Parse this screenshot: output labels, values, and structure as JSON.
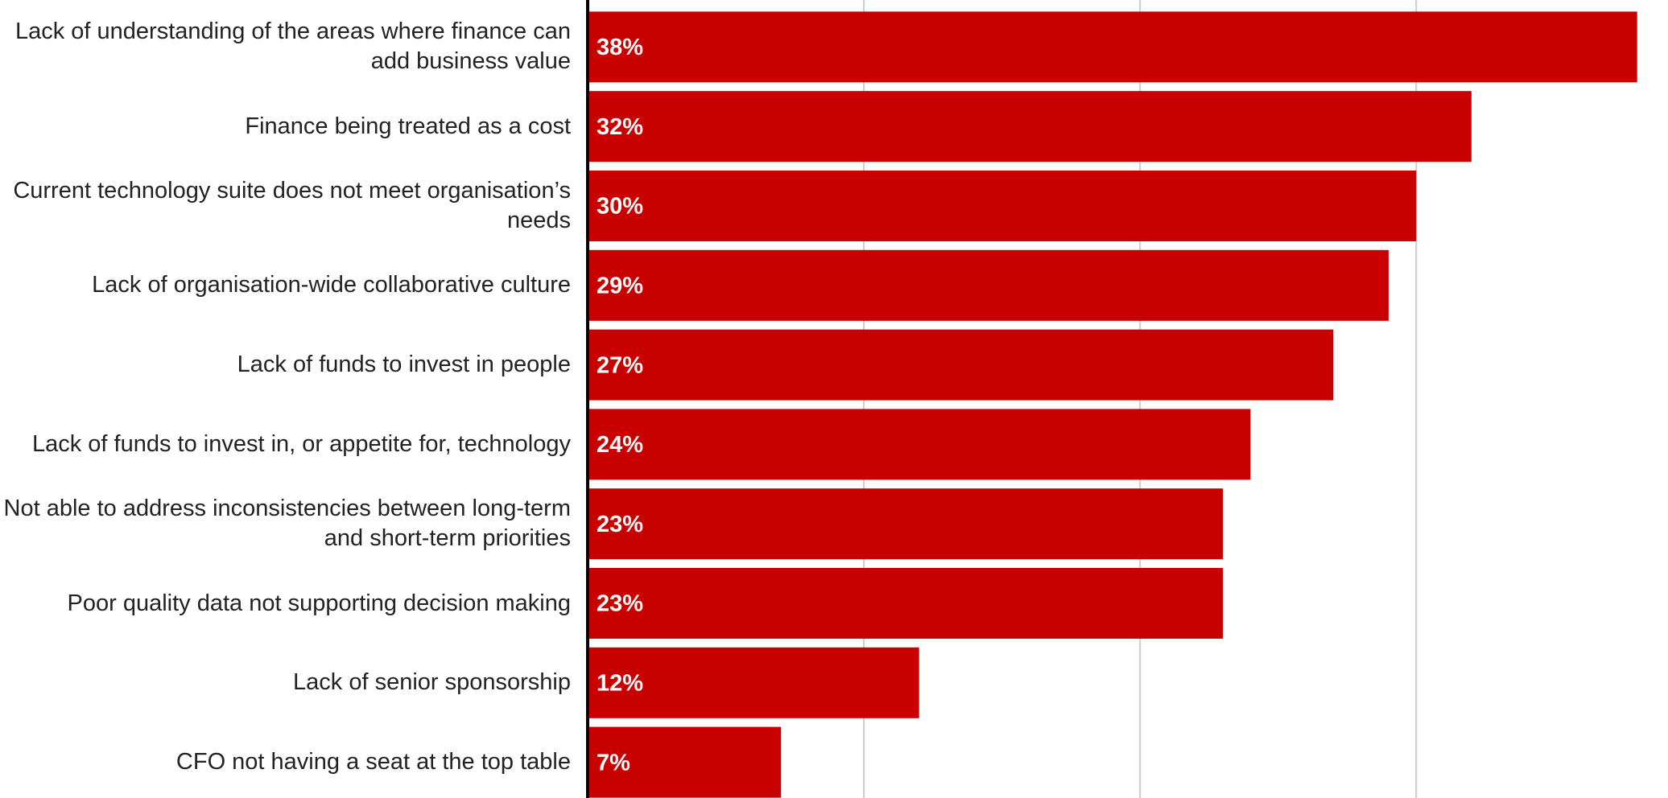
{
  "chart_data": {
    "type": "barh",
    "categories": [
      "Lack of understanding of the areas where finance can add business value",
      "Finance being treated as a cost",
      "Current technology suite does not meet organisation’s needs",
      "Lack of organisation-wide collaborative culture",
      "Lack of funds to invest in people",
      "Lack of funds to invest in, or appetite for, technology",
      "Not able to address inconsistencies between long-term and short-term priorities",
      "Poor quality data not supporting decision making",
      "Lack of senior sponsorship",
      "CFO not having a seat at the top table"
    ],
    "values": [
      38,
      32,
      30,
      29,
      27,
      24,
      23,
      23,
      12,
      7
    ],
    "value_labels": [
      "38%",
      "32%",
      "30%",
      "29%",
      "27%",
      "24%",
      "23%",
      "23%",
      "12%",
      "7%"
    ],
    "color": "#c80000",
    "xlim": [
      0,
      39
    ],
    "xticks": [
      10,
      20,
      30
    ],
    "grid": true
  }
}
